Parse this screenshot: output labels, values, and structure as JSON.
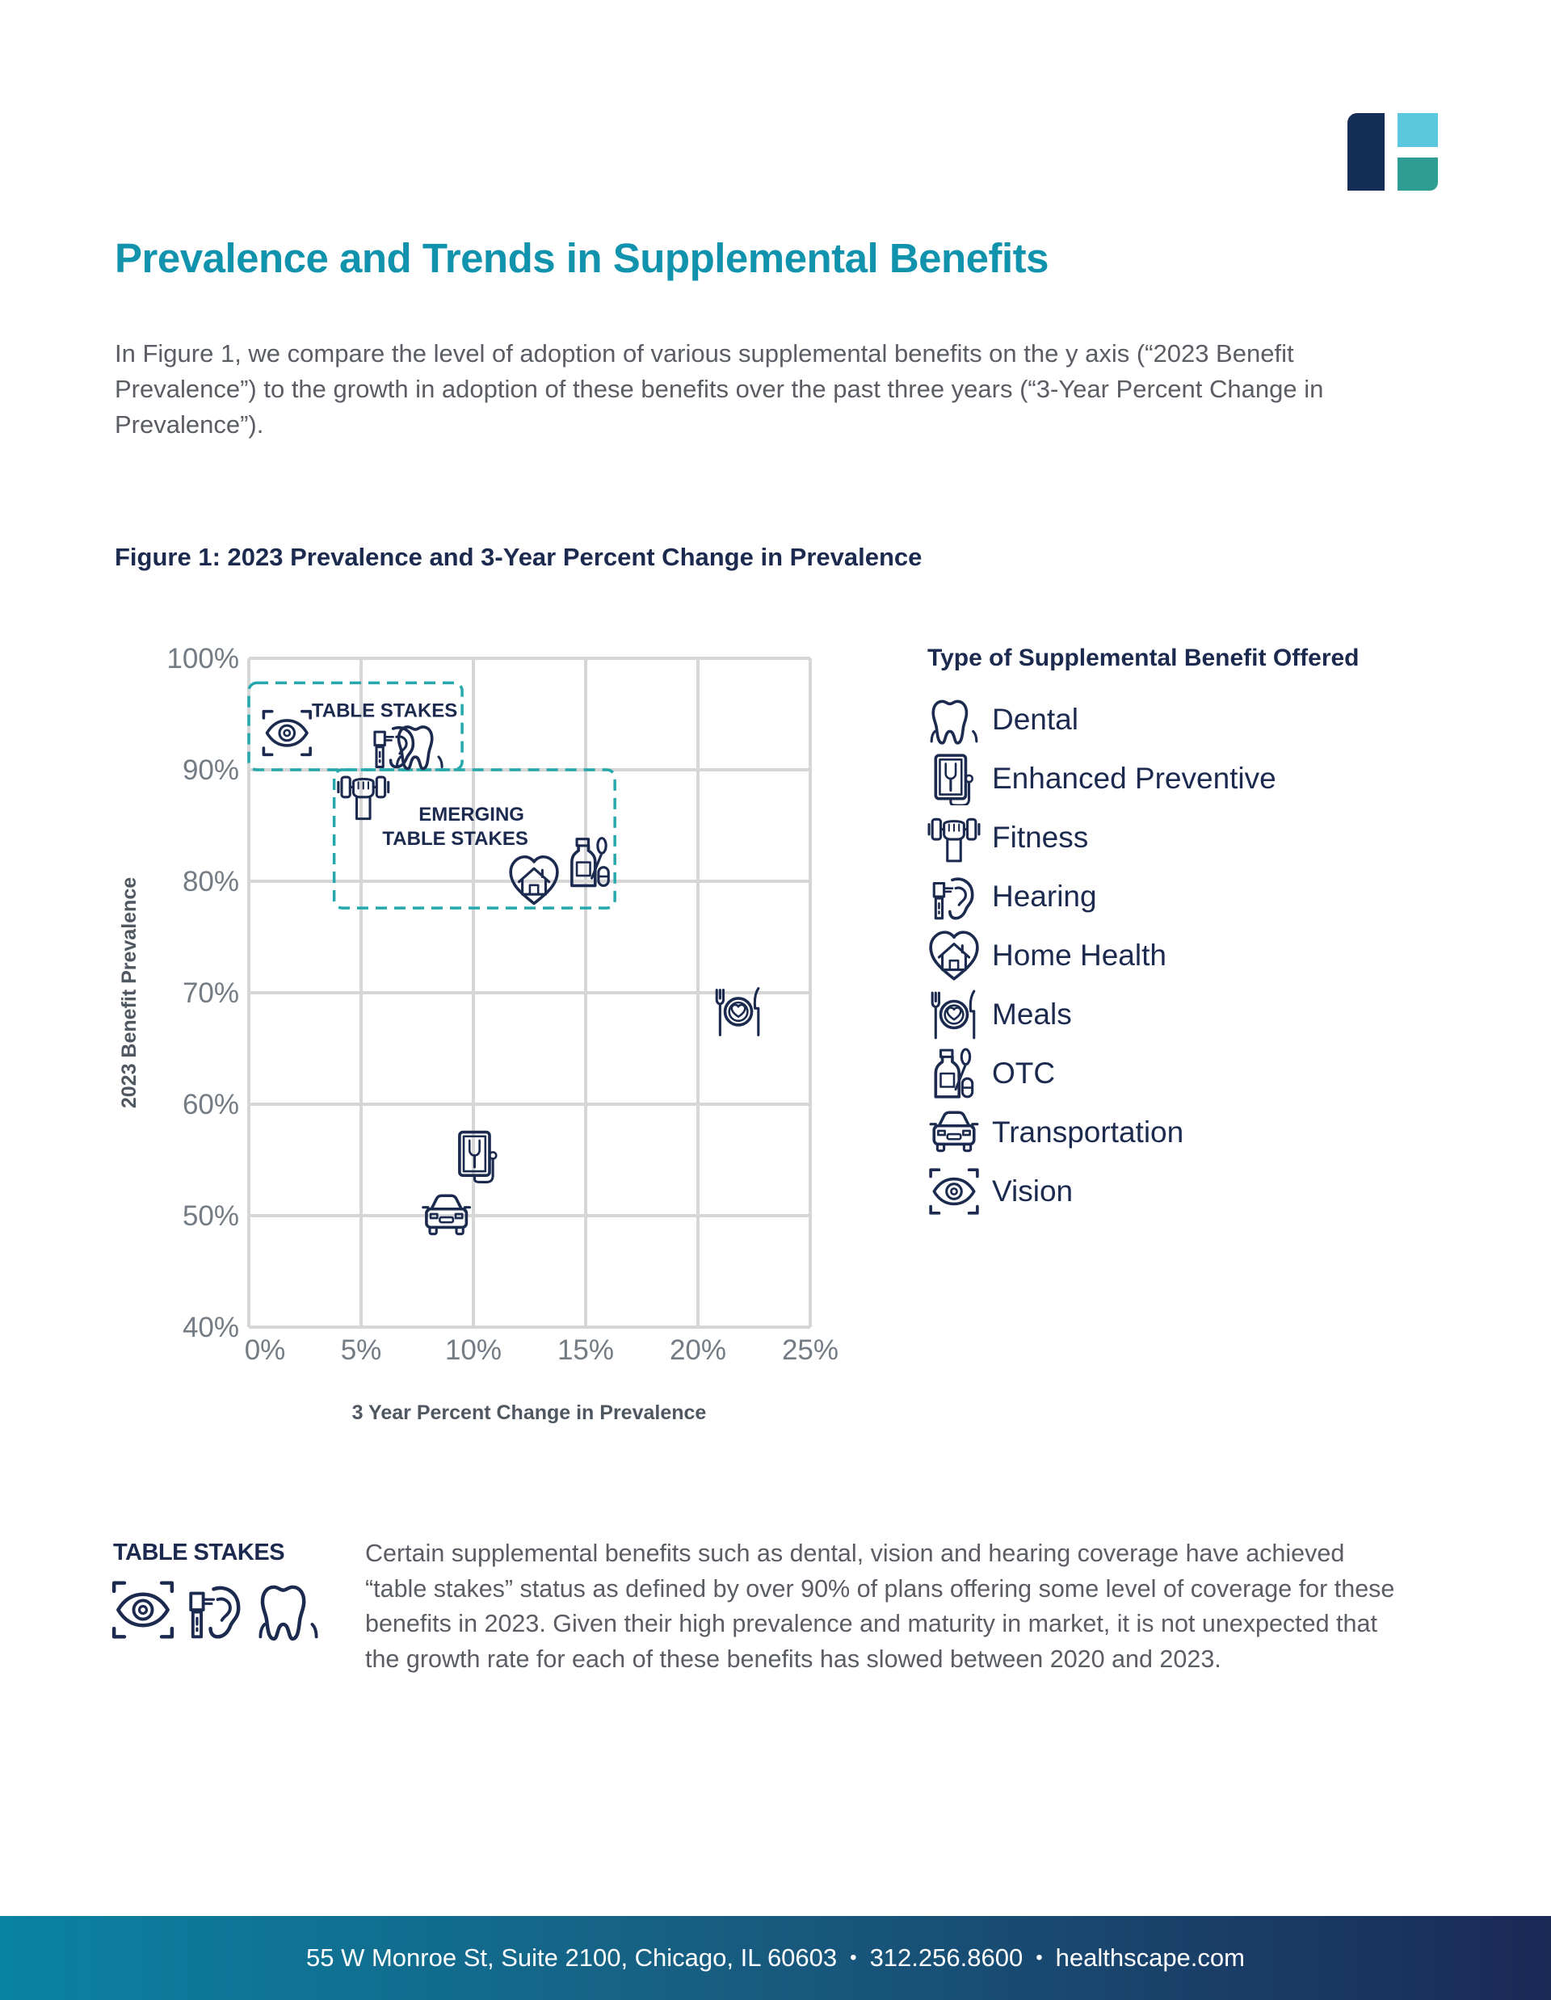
{
  "header": {
    "title": "Prevalence and Trends in Supplemental Benefits",
    "intro": "In Figure 1, we compare the level of adoption of various supplemental benefits on the y axis (“2023 Benefit Prevalence”) to the growth in adoption of these benefits over the past three years (“3-Year Percent Change in Prevalence”)."
  },
  "figure": {
    "caption": "Figure 1: 2023 Prevalence and 3-Year Percent Change in Prevalence"
  },
  "brand_colors": {
    "title_teal": "#1193ad",
    "navy": "#1b2a4e",
    "dashed_box": "#25a8ab",
    "grid": "#d6d6d6",
    "logo_navy": "#142d56",
    "logo_light_blue": "#5bc8dd",
    "logo_teal": "#2e9e94"
  },
  "chart_data": {
    "type": "scatter",
    "title": "Figure 1: 2023 Prevalence and 3-Year Percent Change in Prevalence",
    "xlabel": "3 Year Percent Change in Prevalence",
    "ylabel": "2023 Benefit Prevalence",
    "xlim": [
      0,
      25
    ],
    "ylim": [
      40,
      100
    ],
    "x_ticks": [
      "0%",
      "5%",
      "10%",
      "15%",
      "20%",
      "25%"
    ],
    "x_tick_values": [
      0,
      5,
      10,
      15,
      20,
      25
    ],
    "y_ticks": [
      "100%",
      "90%",
      "80%",
      "70%",
      "60%",
      "50%",
      "40%"
    ],
    "y_tick_values": [
      100,
      90,
      80,
      70,
      60,
      50,
      40
    ],
    "grid": true,
    "marker": "icon",
    "points": [
      {
        "name": "Vision",
        "icon": "vision",
        "x": 1.7,
        "y": 93.3
      },
      {
        "name": "Hearing",
        "icon": "hearing",
        "x": 6.5,
        "y": 92.2
      },
      {
        "name": "Dental",
        "icon": "dental",
        "x": 7.6,
        "y": 92.2
      },
      {
        "name": "Fitness",
        "icon": "fitness",
        "x": 5.1,
        "y": 87.7
      },
      {
        "name": "Home Health",
        "icon": "home-health",
        "x": 12.7,
        "y": 80.1
      },
      {
        "name": "OTC",
        "icon": "otc",
        "x": 15.2,
        "y": 81.7
      },
      {
        "name": "Meals",
        "icon": "meals",
        "x": 21.8,
        "y": 68.3
      },
      {
        "name": "Enhanced Preventive",
        "icon": "enhanced-preventive",
        "x": 10.2,
        "y": 55.4
      },
      {
        "name": "Transportation",
        "icon": "transportation",
        "x": 8.8,
        "y": 50.0
      }
    ],
    "regions": [
      {
        "label": [
          "TABLE STAKES"
        ],
        "x_range": [
          0,
          9.5
        ],
        "y_range": [
          90,
          97.8
        ],
        "style": "dashed"
      },
      {
        "label": [
          "EMERGING",
          "TABLE STAKES"
        ],
        "x_range": [
          3.8,
          16.3
        ],
        "y_range": [
          77.6,
          90
        ],
        "style": "dashed"
      }
    ],
    "legend": {
      "title": "Type of Supplemental Benefit Offered",
      "position": "right",
      "items": [
        {
          "label": "Dental",
          "icon": "dental"
        },
        {
          "label": "Enhanced Preventive",
          "icon": "enhanced-preventive"
        },
        {
          "label": "Fitness",
          "icon": "fitness"
        },
        {
          "label": "Hearing",
          "icon": "hearing"
        },
        {
          "label": "Home Health",
          "icon": "home-health"
        },
        {
          "label": "Meals",
          "icon": "meals"
        },
        {
          "label": "OTC",
          "icon": "otc"
        },
        {
          "label": "Transportation",
          "icon": "transportation"
        },
        {
          "label": "Vision",
          "icon": "vision"
        }
      ]
    }
  },
  "table_stakes_note": {
    "heading": "TABLE STAKES",
    "icons": [
      "vision",
      "hearing",
      "dental"
    ],
    "body": "Certain supplemental benefits such as dental, vision and hearing coverage have achieved “table stakes” status as defined by over 90% of plans offering some level of coverage for these benefits in 2023. Given their high prevalence and maturity in market, it is not unexpected that the growth rate for each of these benefits has slowed between 2020 and 2023."
  },
  "footer": {
    "address": "55 W Monroe St, Suite 2100, Chicago, IL 60603",
    "phone": "312.256.8600",
    "website": "healthscape.com",
    "separator": "•"
  }
}
